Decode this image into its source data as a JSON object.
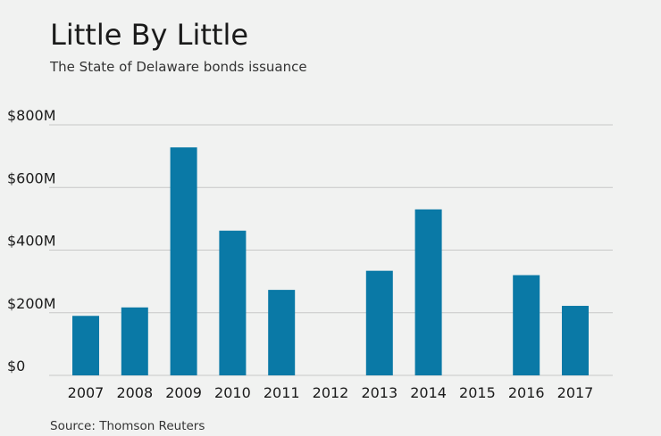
{
  "header": {
    "title": "Little By Little",
    "subtitle": "The State of Delaware bonds issuance"
  },
  "footer": {
    "source": "Source: Thomson Reuters"
  },
  "colors": {
    "bar": "#0a79a6",
    "grid": "#c8c8c8",
    "background": "#f1f2f1"
  },
  "chart_data": {
    "type": "bar",
    "title": "Little By Little",
    "subtitle": "The State of Delaware bonds issuance",
    "xlabel": "",
    "ylabel": "",
    "categories": [
      "2007",
      "2008",
      "2009",
      "2010",
      "2011",
      "2012",
      "2013",
      "2014",
      "2015",
      "2016",
      "2017"
    ],
    "values": [
      190,
      217,
      728,
      462,
      273,
      0,
      334,
      530,
      0,
      320,
      222
    ],
    "value_unit": "$M",
    "ylim": [
      0,
      800
    ],
    "yticks": [
      0,
      200,
      400,
      600,
      800
    ],
    "ytick_labels": [
      "$0",
      "$200M",
      "$400M",
      "$600M",
      "$800M"
    ],
    "grid": true,
    "legend": "none"
  }
}
